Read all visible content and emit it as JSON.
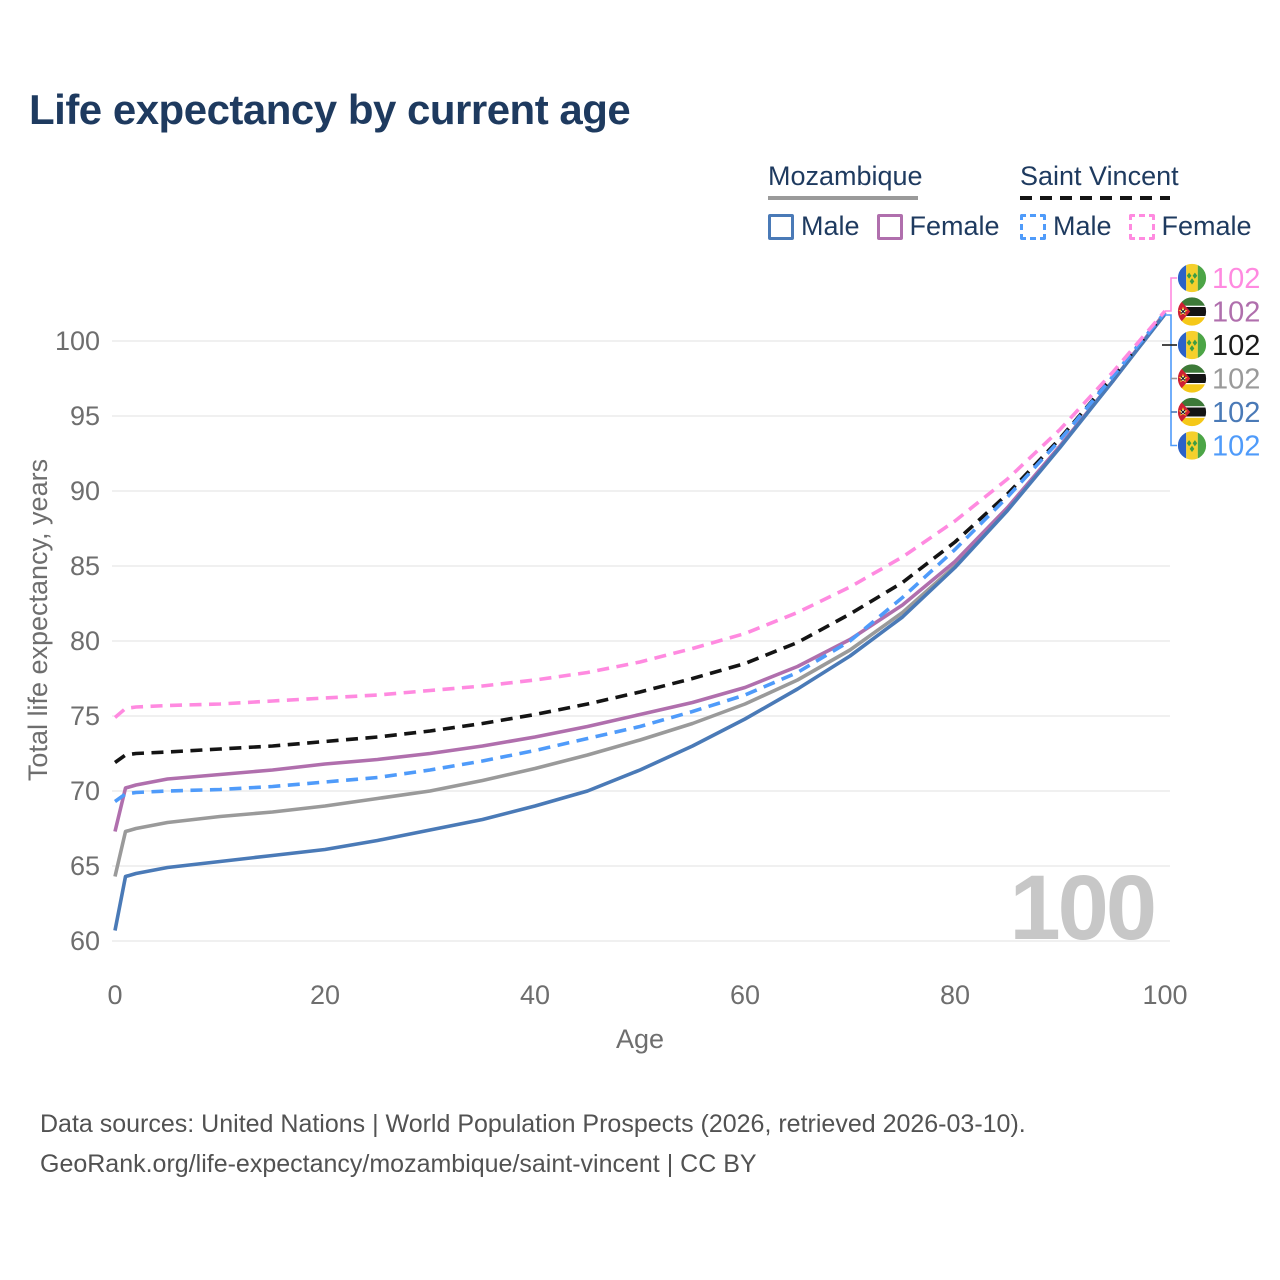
{
  "title": "Life expectancy by current age",
  "legend": {
    "groups": [
      {
        "id": "mozambique",
        "label": "Mozambique",
        "line_style": "solid",
        "line_color": "#9a9a9a",
        "items": [
          {
            "id": "moz_male",
            "label": "Male",
            "color": "#4a7ab7",
            "dashed": false
          },
          {
            "id": "moz_female",
            "label": "Female",
            "color": "#b06fad",
            "dashed": false
          }
        ]
      },
      {
        "id": "saint_vincent",
        "label": "Saint Vincent",
        "line_style": "dashed",
        "line_color": "#141414",
        "items": [
          {
            "id": "sv_male",
            "label": "Male",
            "color": "#4f9bfa",
            "dashed": true
          },
          {
            "id": "sv_female",
            "label": "Female",
            "color": "#ff8ae0",
            "dashed": true
          }
        ]
      }
    ]
  },
  "chart_data": {
    "type": "line",
    "title": "Life expectancy by current age",
    "xlabel": "Age",
    "ylabel": "Total life expectancy, years",
    "x_ticks": [
      0,
      20,
      40,
      60,
      80,
      100
    ],
    "y_ticks": [
      60,
      65,
      70,
      75,
      80,
      85,
      90,
      95,
      100
    ],
    "xlim": [
      0,
      100
    ],
    "ylim": [
      60,
      102.5
    ],
    "grid": "horizontal",
    "legend_position": "top-right",
    "watermark": "100",
    "ages": [
      0,
      1,
      2,
      5,
      10,
      15,
      20,
      25,
      30,
      35,
      40,
      45,
      50,
      55,
      60,
      65,
      70,
      75,
      80,
      85,
      90,
      95,
      100
    ],
    "series": [
      {
        "id": "moz_combined",
        "name": "Mozambique",
        "country": "Mozambique",
        "sex": "Both",
        "color": "#9a9a9a",
        "dashed": false,
        "values": [
          64.3,
          67.3,
          67.5,
          67.9,
          68.3,
          68.6,
          69.0,
          69.5,
          70.0,
          70.7,
          71.5,
          72.4,
          73.4,
          74.5,
          75.8,
          77.4,
          79.4,
          81.9,
          85.0,
          88.8,
          93.0,
          97.3,
          101.8
        ]
      },
      {
        "id": "moz_female",
        "name": "Mozambique Female",
        "country": "Mozambique",
        "sex": "Female",
        "color": "#b06fad",
        "dashed": false,
        "values": [
          67.3,
          70.2,
          70.4,
          70.8,
          71.1,
          71.4,
          71.8,
          72.1,
          72.5,
          73.0,
          73.6,
          74.3,
          75.1,
          75.9,
          76.9,
          78.3,
          80.1,
          82.4,
          85.3,
          88.9,
          93.0,
          97.3,
          101.9
        ]
      },
      {
        "id": "moz_male",
        "name": "Mozambique Male",
        "country": "Mozambique",
        "sex": "Male",
        "color": "#4a7ab7",
        "dashed": false,
        "values": [
          60.7,
          64.3,
          64.5,
          64.9,
          65.3,
          65.7,
          66.1,
          66.7,
          67.4,
          68.1,
          69.0,
          70.0,
          71.4,
          73.0,
          74.8,
          76.8,
          79.0,
          81.6,
          84.9,
          88.7,
          92.9,
          97.3,
          101.8
        ]
      },
      {
        "id": "sv_combined",
        "name": "Saint Vincent",
        "country": "Saint Vincent",
        "sex": "Both",
        "color": "#141414",
        "dashed": true,
        "values": [
          71.9,
          72.4,
          72.5,
          72.6,
          72.8,
          73.0,
          73.3,
          73.6,
          74.0,
          74.5,
          75.1,
          75.8,
          76.6,
          77.5,
          78.5,
          79.9,
          81.8,
          83.9,
          86.6,
          89.8,
          93.5,
          97.6,
          101.9
        ]
      },
      {
        "id": "sv_male",
        "name": "Saint Vincent Male",
        "country": "Saint Vincent",
        "sex": "Male",
        "color": "#4f9bfa",
        "dashed": true,
        "values": [
          69.3,
          69.8,
          69.9,
          70.0,
          70.1,
          70.3,
          70.6,
          70.9,
          71.4,
          72.0,
          72.7,
          73.5,
          74.3,
          75.3,
          76.4,
          77.9,
          80.0,
          82.9,
          86.1,
          89.6,
          93.4,
          97.6,
          101.9
        ]
      },
      {
        "id": "sv_female",
        "name": "Saint Vincent Female",
        "country": "Saint Vincent",
        "sex": "Female",
        "color": "#ff8ae0",
        "dashed": true,
        "values": [
          74.9,
          75.5,
          75.6,
          75.7,
          75.8,
          76.0,
          76.2,
          76.4,
          76.7,
          77.0,
          77.4,
          77.9,
          78.6,
          79.5,
          80.5,
          81.9,
          83.6,
          85.6,
          88.0,
          90.8,
          94.1,
          97.9,
          102.0
        ]
      }
    ],
    "end_labels": [
      {
        "id": "sv_female",
        "country": "Saint Vincent",
        "flag": "saint-vincent",
        "value": "102",
        "color": "#ff8ae0"
      },
      {
        "id": "moz_female",
        "country": "Mozambique",
        "flag": "mozambique",
        "value": "102",
        "color": "#b06fad"
      },
      {
        "id": "sv_combined",
        "country": "Saint Vincent",
        "flag": "saint-vincent",
        "value": "102",
        "color": "#1b1b1b"
      },
      {
        "id": "moz_combined",
        "country": "Mozambique",
        "flag": "mozambique",
        "value": "102",
        "color": "#9a9a9a"
      },
      {
        "id": "moz_male",
        "country": "Mozambique",
        "flag": "mozambique",
        "value": "102",
        "color": "#4a7ab7"
      },
      {
        "id": "sv_male",
        "country": "Saint Vincent",
        "flag": "saint-vincent",
        "value": "102",
        "color": "#4f9bfa"
      }
    ]
  },
  "footer": {
    "line1": "Data sources: United Nations | World Population Prospects (2026, retrieved 2026-03-10).",
    "line2": "GeoRank.org/life-expectancy/mozambique/saint-vincent | CC BY"
  }
}
